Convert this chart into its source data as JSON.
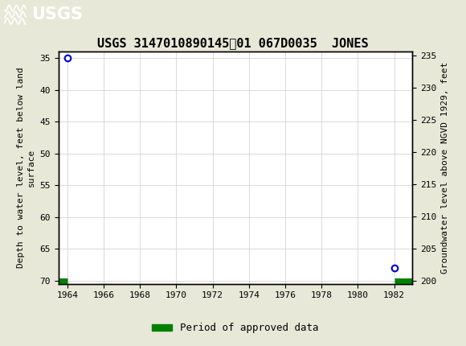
{
  "title": "USGS 3147010890145​01 067D0035  JONES",
  "header_color": "#1a6b3a",
  "background_color": "#e8e8d8",
  "plot_bg_color": "#ffffff",
  "left_ylabel": "Depth to water level, feet below land\nsurface",
  "right_ylabel": "Groundwater level above NGVD 1929, feet",
  "xlim": [
    1963.5,
    1983.0
  ],
  "xticks": [
    1964,
    1966,
    1968,
    1970,
    1972,
    1974,
    1976,
    1978,
    1980,
    1982
  ],
  "ylim_left": [
    70.5,
    34.0
  ],
  "ylim_right": [
    199.5,
    235.5
  ],
  "yticks_left": [
    35,
    40,
    45,
    50,
    55,
    60,
    65,
    70
  ],
  "yticks_right": [
    200,
    205,
    210,
    215,
    220,
    225,
    230,
    235
  ],
  "data_x": [
    1964.0,
    1982.0
  ],
  "data_y": [
    35.0,
    68.0
  ],
  "point_color": "#0000cc",
  "approved_color": "#008000",
  "grid_color": "#cccccc",
  "legend_label": "Period of approved data"
}
